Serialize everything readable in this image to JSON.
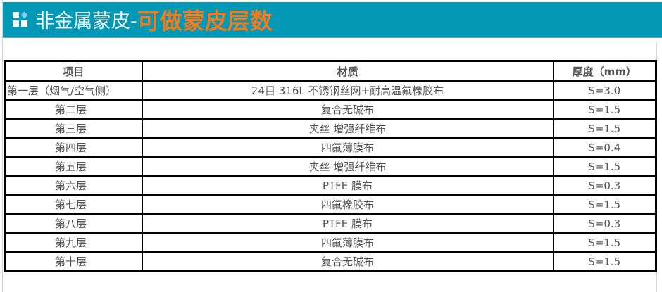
{
  "title": {
    "prefix": "非金属蒙皮-",
    "highlight": "可做蒙皮层数"
  },
  "colors": {
    "banner": "#0399b6",
    "highlight": "#f07a1c"
  },
  "table": {
    "headers": [
      "项目",
      "材质",
      "厚度（mm）"
    ],
    "rows": [
      [
        "第一层（烟气/空气侧）",
        "24目 316L 不锈钢丝网+耐高温氟橡胶布",
        "S=3.0"
      ],
      [
        "第二层",
        "复合无碱布",
        "S=1.5"
      ],
      [
        "第三层",
        "夹丝 增强纤维布",
        "S=1.5"
      ],
      [
        "第四层",
        "四氟薄膜布",
        "S=0.4"
      ],
      [
        "第五层",
        "夹丝 增强纤维布",
        "S=1.5"
      ],
      [
        "第六层",
        "PTFE 膜布",
        "S=0.3"
      ],
      [
        "第七层",
        "四氟橡胶布",
        "S=1.5"
      ],
      [
        "第八层",
        "PTFE 膜布",
        "S=0.3"
      ],
      [
        "第九层",
        "四氟薄膜布",
        "S=1.5"
      ],
      [
        "第十层",
        "复合无碱布",
        "S=1.5"
      ]
    ]
  }
}
